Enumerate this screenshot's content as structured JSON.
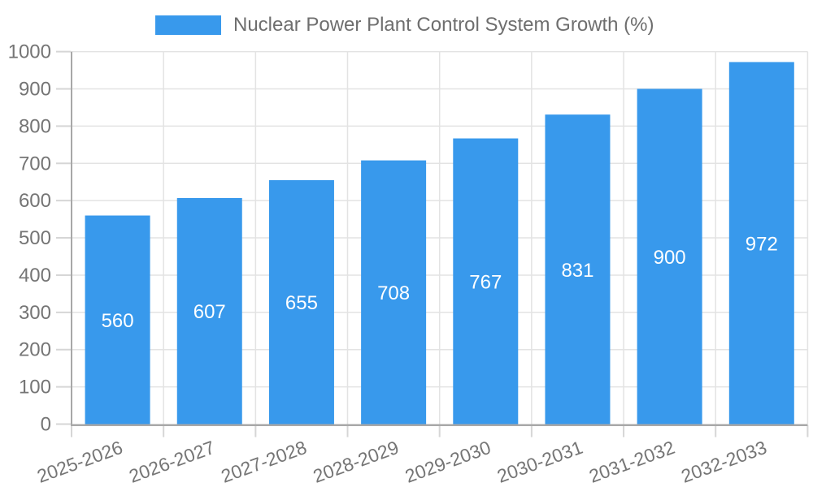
{
  "chart_data": {
    "type": "bar",
    "title": "Nuclear Power Plant Control System Growth (%)",
    "categories": [
      "2025-2026",
      "2026-2027",
      "2027-2028",
      "2028-2029",
      "2029-2030",
      "2030-2031",
      "2031-2032",
      "2032-2033"
    ],
    "values": [
      560,
      607,
      655,
      708,
      767,
      831,
      900,
      972
    ],
    "xlabel": "",
    "ylabel": "",
    "ylim": [
      0,
      1000
    ],
    "ytick_step": 100,
    "yticks": [
      0,
      100,
      200,
      300,
      400,
      500,
      600,
      700,
      800,
      900,
      1000
    ],
    "grid": true,
    "legend_position": "top-center",
    "colors": {
      "bar": "#3899ec",
      "value_label": "#ffffff",
      "gridline": "#e3e3e3",
      "tick": "#d6d6d6",
      "axis": "#a8a8a8",
      "axis_text": "#757575",
      "legend_text": "#6e6e6e"
    }
  }
}
